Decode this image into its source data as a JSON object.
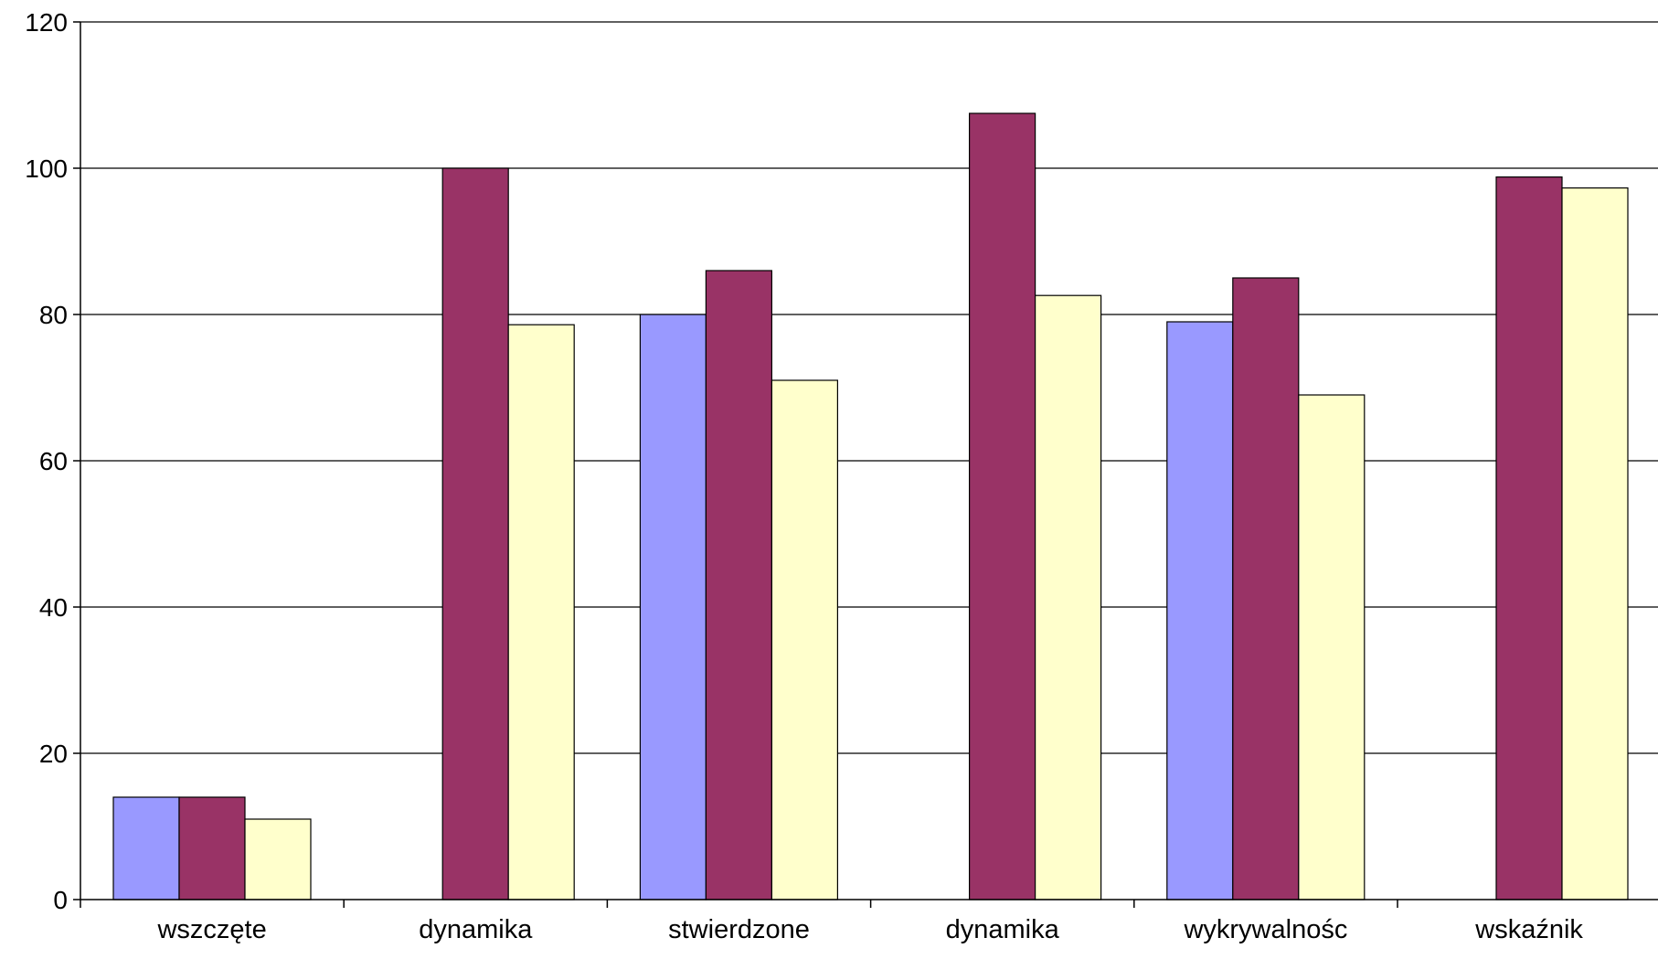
{
  "chart_data": {
    "type": "bar",
    "title": "",
    "xlabel": "",
    "ylabel": "",
    "ylim": [
      0,
      120
    ],
    "yticks": [
      0,
      20,
      40,
      60,
      80,
      100,
      120
    ],
    "grid": true,
    "legend": "none",
    "categories": [
      "wszczęte",
      "dynamika",
      "stwierdzone",
      "dynamika",
      "wykrywalnośc",
      "wskaźnik"
    ],
    "series": [
      {
        "color": "#9999ff",
        "values": [
          14,
          null,
          80,
          null,
          79,
          null
        ]
      },
      {
        "color": "#993366",
        "values": [
          14,
          100,
          86,
          107.5,
          85,
          98.8
        ]
      },
      {
        "color": "#ffffcc",
        "values": [
          11,
          78.6,
          71,
          82.6,
          69,
          97.3
        ]
      }
    ]
  }
}
